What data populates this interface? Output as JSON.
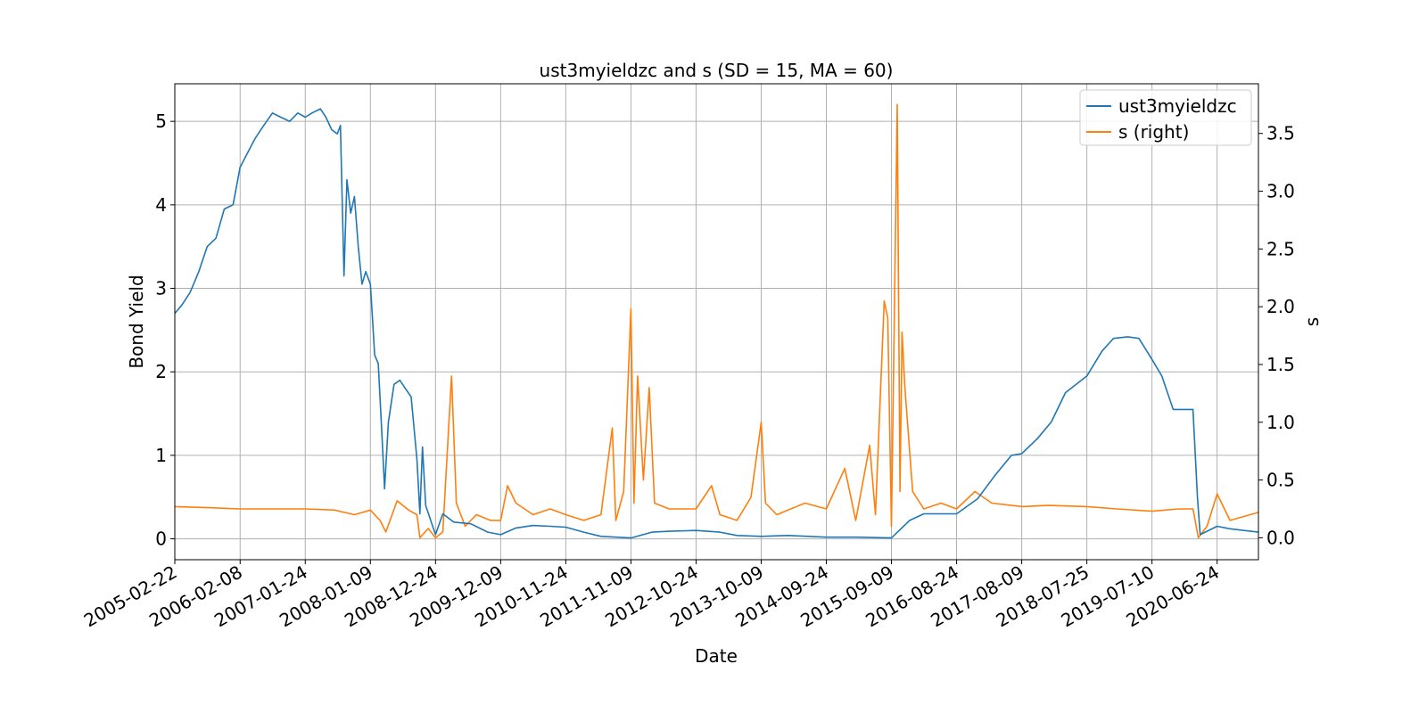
{
  "chart_data": {
    "type": "line",
    "title": "ust3myieldzc and s (SD = 15, MA = 60)",
    "xlabel": "Date",
    "ylabel": "Bond Yield",
    "ylabel_right": "s",
    "xlim": [
      "2005-02-22",
      "2021-02-01"
    ],
    "ylim": [
      -0.25,
      5.45
    ],
    "ylim_right": [
      -0.19,
      3.93
    ],
    "grid": true,
    "legend_position": "top-right",
    "x_ticks": [
      "2005-02-22",
      "2006-02-08",
      "2007-01-24",
      "2008-01-09",
      "2008-12-24",
      "2009-12-09",
      "2010-11-24",
      "2011-11-09",
      "2012-10-24",
      "2013-10-09",
      "2014-09-24",
      "2015-09-09",
      "2016-08-24",
      "2017-08-09",
      "2018-07-25",
      "2019-07-10",
      "2020-06-24"
    ],
    "y_ticks": [
      0,
      1,
      2,
      3,
      4,
      5
    ],
    "y_ticks_right": [
      0.0,
      0.5,
      1.0,
      1.5,
      2.0,
      2.5,
      3.0,
      3.5
    ],
    "series": [
      {
        "name": "ust3myieldzc",
        "axis": "left",
        "color": "#1f77b4",
        "points": [
          [
            "2005-02-22",
            2.7
          ],
          [
            "2005-04-01",
            2.8
          ],
          [
            "2005-05-15",
            2.95
          ],
          [
            "2005-07-01",
            3.2
          ],
          [
            "2005-08-15",
            3.5
          ],
          [
            "2005-10-01",
            3.6
          ],
          [
            "2005-11-15",
            3.95
          ],
          [
            "2006-01-01",
            4.0
          ],
          [
            "2006-02-08",
            4.45
          ],
          [
            "2006-03-15",
            4.6
          ],
          [
            "2006-05-01",
            4.8
          ],
          [
            "2006-06-15",
            4.95
          ],
          [
            "2006-08-01",
            5.1
          ],
          [
            "2006-09-15",
            5.05
          ],
          [
            "2006-11-01",
            5.0
          ],
          [
            "2006-12-15",
            5.1
          ],
          [
            "2007-01-24",
            5.05
          ],
          [
            "2007-03-01",
            5.1
          ],
          [
            "2007-04-15",
            5.15
          ],
          [
            "2007-05-15",
            5.05
          ],
          [
            "2007-06-15",
            4.9
          ],
          [
            "2007-07-15",
            4.85
          ],
          [
            "2007-08-01",
            4.95
          ],
          [
            "2007-08-20",
            3.15
          ],
          [
            "2007-09-05",
            4.3
          ],
          [
            "2007-09-25",
            3.9
          ],
          [
            "2007-10-15",
            4.1
          ],
          [
            "2007-11-05",
            3.5
          ],
          [
            "2007-11-25",
            3.05
          ],
          [
            "2007-12-15",
            3.2
          ],
          [
            "2008-01-09",
            3.05
          ],
          [
            "2008-02-01",
            2.2
          ],
          [
            "2008-02-20",
            2.1
          ],
          [
            "2008-03-10",
            1.3
          ],
          [
            "2008-03-25",
            0.6
          ],
          [
            "2008-04-15",
            1.4
          ],
          [
            "2008-05-15",
            1.85
          ],
          [
            "2008-06-15",
            1.9
          ],
          [
            "2008-07-15",
            1.8
          ],
          [
            "2008-08-15",
            1.7
          ],
          [
            "2008-09-15",
            0.95
          ],
          [
            "2008-10-01",
            0.3
          ],
          [
            "2008-10-15",
            1.1
          ],
          [
            "2008-11-01",
            0.4
          ],
          [
            "2008-12-24",
            0.05
          ],
          [
            "2009-02-01",
            0.3
          ],
          [
            "2009-04-01",
            0.2
          ],
          [
            "2009-07-01",
            0.18
          ],
          [
            "2009-10-01",
            0.08
          ],
          [
            "2009-12-09",
            0.05
          ],
          [
            "2010-03-01",
            0.13
          ],
          [
            "2010-06-01",
            0.16
          ],
          [
            "2010-09-01",
            0.15
          ],
          [
            "2010-11-24",
            0.14
          ],
          [
            "2011-03-01",
            0.08
          ],
          [
            "2011-06-01",
            0.03
          ],
          [
            "2011-11-09",
            0.01
          ],
          [
            "2012-03-01",
            0.08
          ],
          [
            "2012-06-01",
            0.09
          ],
          [
            "2012-10-24",
            0.1
          ],
          [
            "2013-03-01",
            0.08
          ],
          [
            "2013-06-01",
            0.04
          ],
          [
            "2013-10-09",
            0.03
          ],
          [
            "2014-03-01",
            0.04
          ],
          [
            "2014-09-24",
            0.02
          ],
          [
            "2015-03-01",
            0.02
          ],
          [
            "2015-09-09",
            0.01
          ],
          [
            "2015-12-15",
            0.22
          ],
          [
            "2016-03-01",
            0.3
          ],
          [
            "2016-08-24",
            0.3
          ],
          [
            "2016-12-15",
            0.48
          ],
          [
            "2017-03-15",
            0.75
          ],
          [
            "2017-06-15",
            1.0
          ],
          [
            "2017-08-09",
            1.02
          ],
          [
            "2017-11-01",
            1.2
          ],
          [
            "2018-01-15",
            1.4
          ],
          [
            "2018-04-01",
            1.75
          ],
          [
            "2018-07-25",
            1.95
          ],
          [
            "2018-10-15",
            2.25
          ],
          [
            "2018-12-15",
            2.4
          ],
          [
            "2019-03-01",
            2.42
          ],
          [
            "2019-05-01",
            2.4
          ],
          [
            "2019-07-10",
            2.15
          ],
          [
            "2019-09-01",
            1.95
          ],
          [
            "2019-11-01",
            1.55
          ],
          [
            "2020-02-15",
            1.55
          ],
          [
            "2020-03-10",
            0.5
          ],
          [
            "2020-03-25",
            0.05
          ],
          [
            "2020-06-24",
            0.15
          ],
          [
            "2020-09-01",
            0.12
          ],
          [
            "2021-02-01",
            0.08
          ]
        ]
      },
      {
        "name": "s (right)",
        "axis": "right",
        "color": "#ff7f0e",
        "points": [
          [
            "2005-02-22",
            0.27
          ],
          [
            "2005-09-01",
            0.26
          ],
          [
            "2006-02-08",
            0.25
          ],
          [
            "2006-08-01",
            0.25
          ],
          [
            "2007-01-24",
            0.25
          ],
          [
            "2007-07-01",
            0.24
          ],
          [
            "2007-10-15",
            0.2
          ],
          [
            "2008-01-09",
            0.24
          ],
          [
            "2008-03-01",
            0.15
          ],
          [
            "2008-04-01",
            0.05
          ],
          [
            "2008-06-01",
            0.32
          ],
          [
            "2008-08-01",
            0.24
          ],
          [
            "2008-09-15",
            0.2
          ],
          [
            "2008-10-01",
            0.0
          ],
          [
            "2008-11-15",
            0.08
          ],
          [
            "2008-12-24",
            0.0
          ],
          [
            "2009-02-01",
            0.05
          ],
          [
            "2009-03-20",
            1.4
          ],
          [
            "2009-04-15",
            0.3
          ],
          [
            "2009-06-01",
            0.1
          ],
          [
            "2009-08-01",
            0.2
          ],
          [
            "2009-10-15",
            0.15
          ],
          [
            "2009-12-09",
            0.15
          ],
          [
            "2010-01-15",
            0.45
          ],
          [
            "2010-03-01",
            0.3
          ],
          [
            "2010-06-01",
            0.2
          ],
          [
            "2010-09-01",
            0.25
          ],
          [
            "2010-11-24",
            0.2
          ],
          [
            "2011-03-01",
            0.15
          ],
          [
            "2011-06-01",
            0.2
          ],
          [
            "2011-08-01",
            0.95
          ],
          [
            "2011-08-20",
            0.15
          ],
          [
            "2011-10-01",
            0.4
          ],
          [
            "2011-11-09",
            1.98
          ],
          [
            "2011-11-25",
            0.3
          ],
          [
            "2011-12-15",
            1.4
          ],
          [
            "2012-01-15",
            0.5
          ],
          [
            "2012-02-15",
            1.3
          ],
          [
            "2012-03-15",
            0.3
          ],
          [
            "2012-06-01",
            0.25
          ],
          [
            "2012-10-24",
            0.25
          ],
          [
            "2013-01-15",
            0.45
          ],
          [
            "2013-03-01",
            0.2
          ],
          [
            "2013-06-01",
            0.15
          ],
          [
            "2013-08-15",
            0.35
          ],
          [
            "2013-10-09",
            1.0
          ],
          [
            "2013-11-01",
            0.3
          ],
          [
            "2014-01-01",
            0.2
          ],
          [
            "2014-06-01",
            0.3
          ],
          [
            "2014-09-24",
            0.25
          ],
          [
            "2015-01-01",
            0.6
          ],
          [
            "2015-03-01",
            0.15
          ],
          [
            "2015-05-15",
            0.8
          ],
          [
            "2015-06-15",
            0.2
          ],
          [
            "2015-08-01",
            2.05
          ],
          [
            "2015-08-20",
            1.9
          ],
          [
            "2015-09-09",
            0.1
          ],
          [
            "2015-10-10",
            3.75
          ],
          [
            "2015-10-25",
            0.4
          ],
          [
            "2015-11-05",
            1.78
          ],
          [
            "2015-11-20",
            1.3
          ],
          [
            "2016-01-01",
            0.4
          ],
          [
            "2016-03-01",
            0.25
          ],
          [
            "2016-06-01",
            0.3
          ],
          [
            "2016-08-24",
            0.25
          ],
          [
            "2016-12-01",
            0.4
          ],
          [
            "2017-03-01",
            0.3
          ],
          [
            "2017-08-09",
            0.27
          ],
          [
            "2018-01-01",
            0.28
          ],
          [
            "2018-07-25",
            0.27
          ],
          [
            "2019-01-01",
            0.25
          ],
          [
            "2019-07-10",
            0.23
          ],
          [
            "2019-12-01",
            0.25
          ],
          [
            "2020-02-15",
            0.25
          ],
          [
            "2020-03-15",
            0.0
          ],
          [
            "2020-05-01",
            0.1
          ],
          [
            "2020-06-24",
            0.38
          ],
          [
            "2020-09-01",
            0.15
          ],
          [
            "2021-02-01",
            0.22
          ]
        ]
      }
    ]
  }
}
